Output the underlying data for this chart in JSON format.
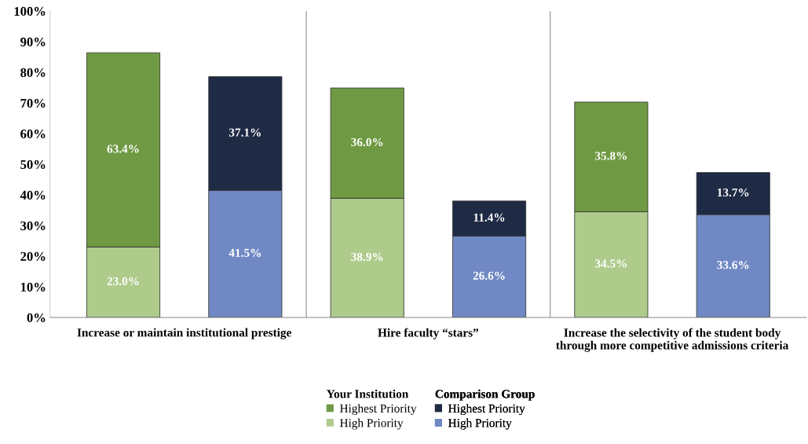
{
  "chart_data": {
    "type": "bar",
    "stacked": true,
    "categories": [
      null,
      null,
      null,
      null,
      null,
      null
    ],
    "tick_labels": "y",
    "series": [
      {
        "name": "High Priority",
        "color": "#aecb8c",
        "values": [
          23.0,
          null,
          38.9,
          null,
          34.5,
          null
        ],
        "value_labels": [
          "23.0%",
          null,
          "38.9%",
          null,
          "34.5%",
          null
        ]
      },
      {
        "name": "Highest Priority",
        "color": "#6f9a43",
        "values": [
          63.4,
          null,
          36.0,
          null,
          35.8,
          null
        ],
        "value_labels": [
          "63.4%",
          null,
          "36.0%",
          null,
          "35.8%",
          null
        ]
      },
      {
        "name": "High Priority",
        "color": "#7089c4",
        "values": [
          null,
          41.5,
          null,
          26.6,
          null,
          33.6
        ],
        "value_labels": [
          null,
          "41.5%",
          null,
          "26.6%",
          null,
          "33.6%"
        ]
      },
      {
        "name": "Highest Priority",
        "color": "#1f2a44",
        "values": [
          null,
          37.1,
          null,
          11.4,
          null,
          13.7
        ],
        "value_labels": [
          null,
          "37.1%",
          null,
          "11.4%",
          null,
          "13.7%"
        ]
      }
    ],
    "annotations": [
      "Increase or maintain institutional prestige",
      "Hire faculty “stars”",
      "Increase the selectivity of the student body through more competitive admissions criteria"
    ],
    "legend": "bottom",
    "legend_title": [
      "Your Institution",
      "Comparison Group"
    ],
    "ylim": [
      0,
      100
    ],
    "yticks": [
      {
        "value": 0,
        "label": "0%"
      },
      {
        "value": 10,
        "label": "10%"
      },
      {
        "value": 20,
        "label": "20%"
      },
      {
        "value": 30,
        "label": "30%"
      },
      {
        "value": 40,
        "label": "40%"
      },
      {
        "value": 50,
        "label": "50%"
      },
      {
        "value": 60,
        "label": "60%"
      },
      {
        "value": 70,
        "label": "70%"
      },
      {
        "value": 80,
        "label": "80%"
      },
      {
        "value": 90,
        "label": "90%"
      },
      {
        "value": 100,
        "label": "100%"
      }
    ],
    "grid": false
  }
}
